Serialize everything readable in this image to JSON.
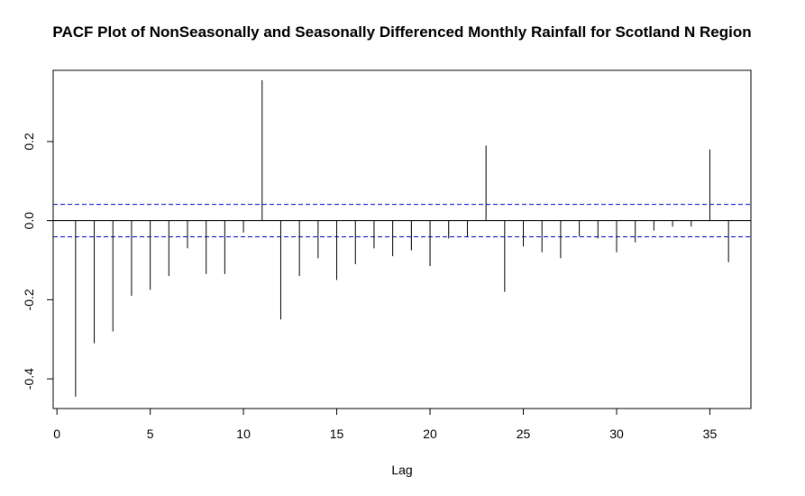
{
  "chart_data": {
    "type": "bar",
    "title": "PACF Plot of NonSeasonally and Seasonally Differenced Monthly Rainfall for Scotland N Region",
    "xlabel": "Lag",
    "ylabel": "",
    "xlim": [
      -0.2,
      37.2
    ],
    "ylim": [
      -0.475,
      0.38
    ],
    "x_ticks": [
      0,
      5,
      10,
      15,
      20,
      25,
      30,
      35
    ],
    "y_ticks": [
      -0.4,
      -0.2,
      0.0,
      0.2
    ],
    "x": [
      1,
      2,
      3,
      4,
      5,
      6,
      7,
      8,
      9,
      10,
      11,
      12,
      13,
      14,
      15,
      16,
      17,
      18,
      19,
      20,
      21,
      22,
      23,
      24,
      25,
      26,
      27,
      28,
      29,
      30,
      31,
      32,
      33,
      34,
      35,
      36
    ],
    "values": [
      -0.445,
      -0.31,
      -0.28,
      -0.19,
      -0.175,
      -0.14,
      -0.07,
      -0.135,
      -0.135,
      -0.03,
      0.355,
      -0.25,
      -0.14,
      -0.095,
      -0.15,
      -0.11,
      -0.07,
      -0.09,
      -0.075,
      -0.115,
      -0.045,
      -0.04,
      0.19,
      -0.18,
      -0.065,
      -0.08,
      -0.095,
      -0.04,
      -0.045,
      -0.08,
      -0.055,
      -0.025,
      -0.015,
      -0.015,
      0.18,
      -0.105
    ],
    "confidence_limit": 0.041,
    "grid": false,
    "colors": {
      "bars": "#000000",
      "confidence": "#0000cc",
      "frame": "#000000"
    }
  }
}
